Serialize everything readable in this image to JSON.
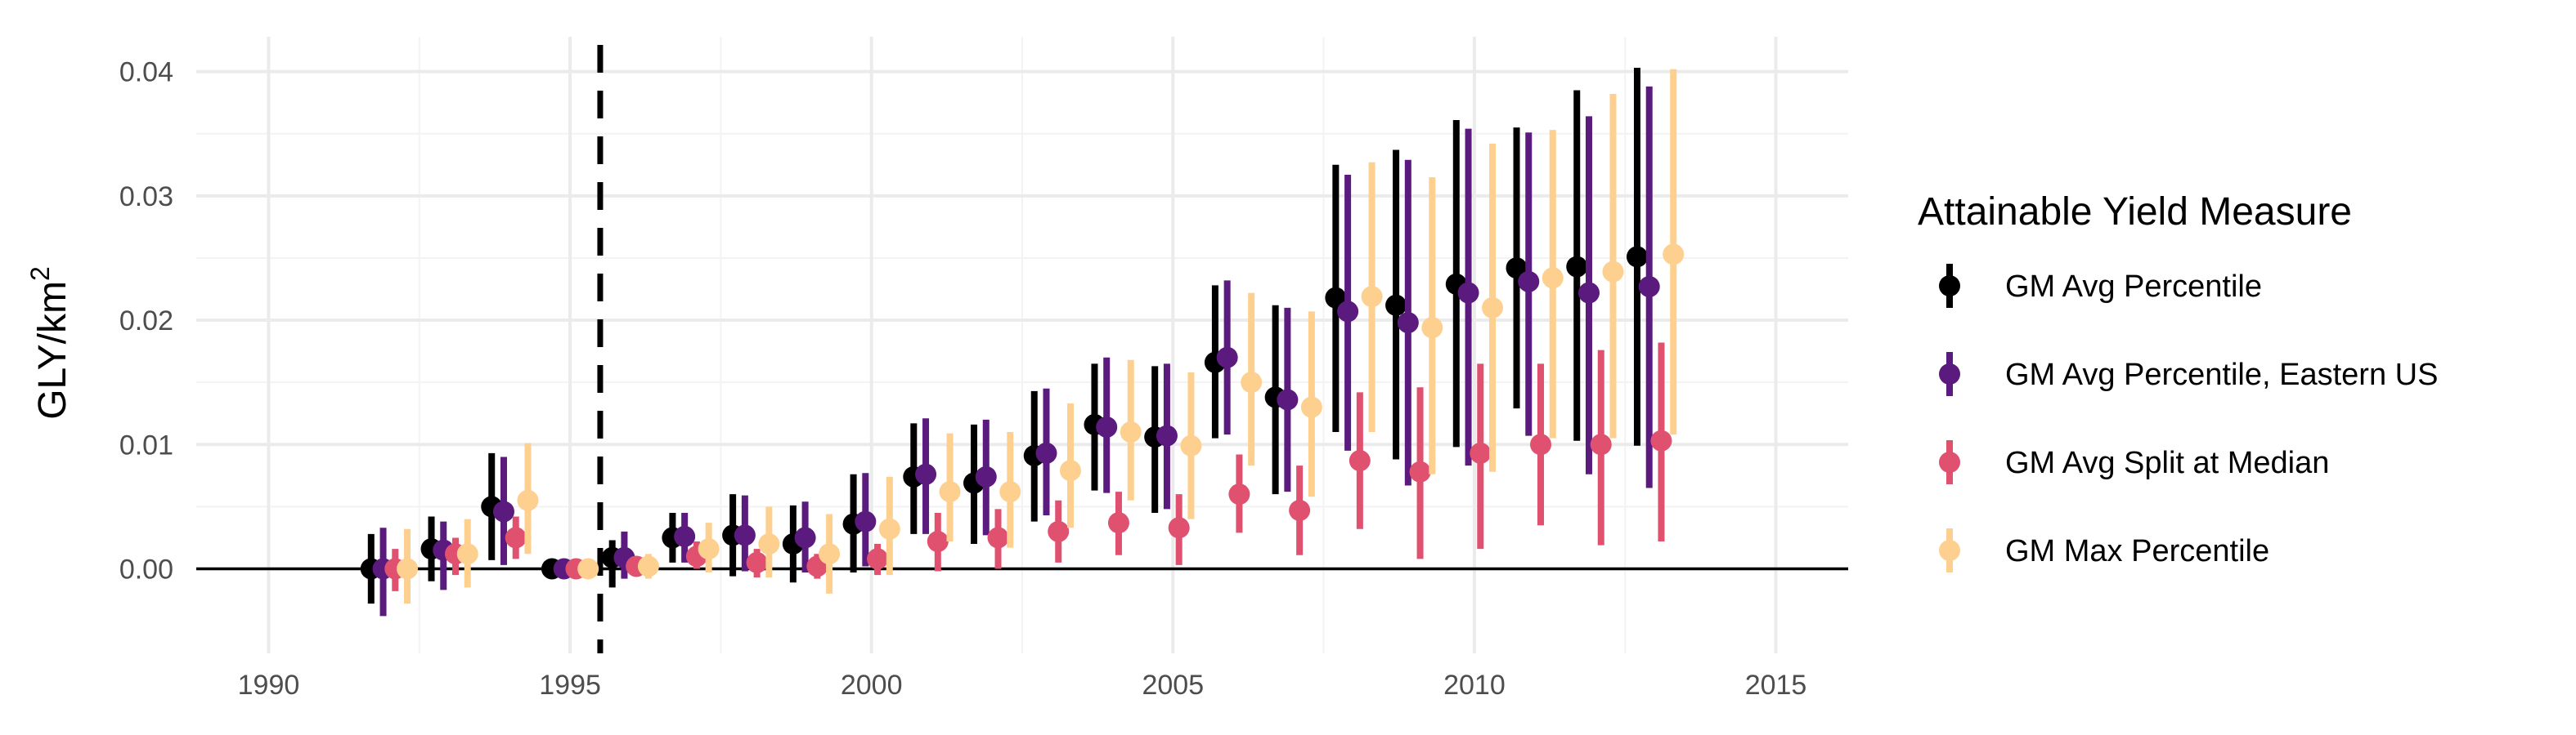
{
  "chart_data": {
    "type": "scatter",
    "subtype": "point-range (dodged)",
    "title": "",
    "xlabel": "",
    "ylabel": "GLY/km",
    "ylabel_superscript": "2",
    "xlim": [
      1988.8,
      2016.2
    ],
    "ylim": [
      -0.0068,
      0.0428
    ],
    "x_ticks": [
      1990,
      1995,
      2000,
      2005,
      2010,
      2015
    ],
    "x_tick_labels": [
      "1990",
      "1995",
      "2000",
      "2005",
      "2010",
      "2015"
    ],
    "y_ticks": [
      0.0,
      0.01,
      0.02,
      0.03,
      0.04
    ],
    "y_tick_labels": [
      "0.00",
      "0.01",
      "0.02",
      "0.03",
      "0.04"
    ],
    "grid": true,
    "hline_y": 0,
    "vline_x": 1995.5,
    "vline_style": "dashed",
    "legend": {
      "title": "Attainable Yield Measure",
      "position": "right"
    },
    "x": [
      1992,
      1993,
      1994,
      1995,
      1996,
      1997,
      1998,
      1999,
      2000,
      2001,
      2002,
      2003,
      2004,
      2005,
      2006,
      2007,
      2008,
      2009,
      2010,
      2011,
      2012,
      2013
    ],
    "series": [
      {
        "name": "GM Avg Percentile",
        "color": "#000000",
        "offset": -0.3,
        "values": [
          0.0,
          0.0016,
          0.005,
          0.0,
          0.0009,
          0.0025,
          0.0027,
          0.002,
          0.0036,
          0.0074,
          0.0069,
          0.0091,
          0.0116,
          0.0106,
          0.0166,
          0.0138,
          0.0218,
          0.0212,
          0.0229,
          0.0242,
          0.0243,
          0.0251
        ],
        "lower": [
          -0.0028,
          -0.001,
          0.0007,
          0.0,
          -0.0015,
          0.0005,
          -0.0006,
          -0.0011,
          -0.0003,
          0.0028,
          0.002,
          0.0038,
          0.0063,
          0.0045,
          0.0105,
          0.006,
          0.011,
          0.0088,
          0.0098,
          0.0129,
          0.0103,
          0.0099
        ],
        "upper": [
          0.0028,
          0.0042,
          0.0093,
          0.0,
          0.0023,
          0.0045,
          0.006,
          0.0051,
          0.0076,
          0.0117,
          0.0116,
          0.0143,
          0.0165,
          0.0163,
          0.0228,
          0.0212,
          0.0325,
          0.0337,
          0.0361,
          0.0355,
          0.0385,
          0.0403
        ]
      },
      {
        "name": "GM Avg Percentile, Eastern US",
        "color": "#5b1a7e",
        "offset": -0.1,
        "values": [
          0.0,
          0.0015,
          0.0046,
          0.0,
          0.0009,
          0.0026,
          0.0027,
          0.0025,
          0.0038,
          0.0076,
          0.0074,
          0.0093,
          0.0114,
          0.0107,
          0.017,
          0.0136,
          0.0207,
          0.0198,
          0.0222,
          0.0231,
          0.0222,
          0.0227
        ],
        "lower": [
          -0.0038,
          -0.0017,
          0.0003,
          0.0,
          -0.0008,
          0.0005,
          -0.0002,
          -0.0003,
          0.0002,
          0.0028,
          0.0027,
          0.0043,
          0.0061,
          0.0048,
          0.0108,
          0.0062,
          0.0095,
          0.0067,
          0.0083,
          0.0107,
          0.0076,
          0.0065
        ],
        "upper": [
          0.0033,
          0.0038,
          0.009,
          0.0,
          0.003,
          0.0045,
          0.0059,
          0.0054,
          0.0077,
          0.0121,
          0.012,
          0.0145,
          0.017,
          0.0165,
          0.0232,
          0.021,
          0.0317,
          0.0329,
          0.0354,
          0.0351,
          0.0364,
          0.0388
        ]
      },
      {
        "name": "GM Avg Split at Median",
        "color": "#e0506f",
        "offset": 0.1,
        "values": [
          0.0,
          0.0012,
          0.0025,
          0.0,
          0.0002,
          0.001,
          0.0005,
          0.0002,
          0.0008,
          0.0022,
          0.0025,
          0.003,
          0.0037,
          0.0033,
          0.006,
          0.0047,
          0.0087,
          0.0078,
          0.0093,
          0.01,
          0.01,
          0.0103
        ],
        "lower": [
          -0.0018,
          -0.0005,
          0.0008,
          0.0,
          -0.0005,
          0.0,
          -0.0007,
          -0.0008,
          -0.0005,
          -0.0002,
          0.0,
          0.0005,
          0.0011,
          0.0003,
          0.0029,
          0.0011,
          0.0032,
          0.0008,
          0.0016,
          0.0035,
          0.0019,
          0.0022
        ],
        "upper": [
          0.0016,
          0.0025,
          0.0042,
          0.0,
          0.0006,
          0.0022,
          0.0016,
          0.0012,
          0.002,
          0.0045,
          0.0048,
          0.0055,
          0.0062,
          0.006,
          0.0092,
          0.0083,
          0.0142,
          0.0146,
          0.0165,
          0.0165,
          0.0176,
          0.0182
        ]
      },
      {
        "name": "GM Max Percentile",
        "color": "#fdd090",
        "offset": 0.3,
        "values": [
          0.0,
          0.0012,
          0.0055,
          0.0,
          0.0002,
          0.0016,
          0.002,
          0.0012,
          0.0032,
          0.0062,
          0.0062,
          0.0079,
          0.011,
          0.0099,
          0.015,
          0.013,
          0.0219,
          0.0194,
          0.021,
          0.0234,
          0.0239,
          0.0253
        ],
        "lower": [
          -0.0028,
          -0.0015,
          0.0012,
          0.0,
          -0.0008,
          -0.0003,
          -0.0007,
          -0.002,
          -0.0005,
          0.0022,
          0.0017,
          0.0033,
          0.0055,
          0.004,
          0.0083,
          0.0058,
          0.011,
          0.0076,
          0.0078,
          0.0105,
          0.0105,
          0.0108
        ],
        "upper": [
          0.0032,
          0.004,
          0.0101,
          0.0,
          0.0012,
          0.0037,
          0.005,
          0.0044,
          0.0074,
          0.0109,
          0.011,
          0.0133,
          0.0168,
          0.0158,
          0.0222,
          0.0207,
          0.0327,
          0.0315,
          0.0342,
          0.0353,
          0.0382,
          0.0402
        ]
      }
    ]
  }
}
